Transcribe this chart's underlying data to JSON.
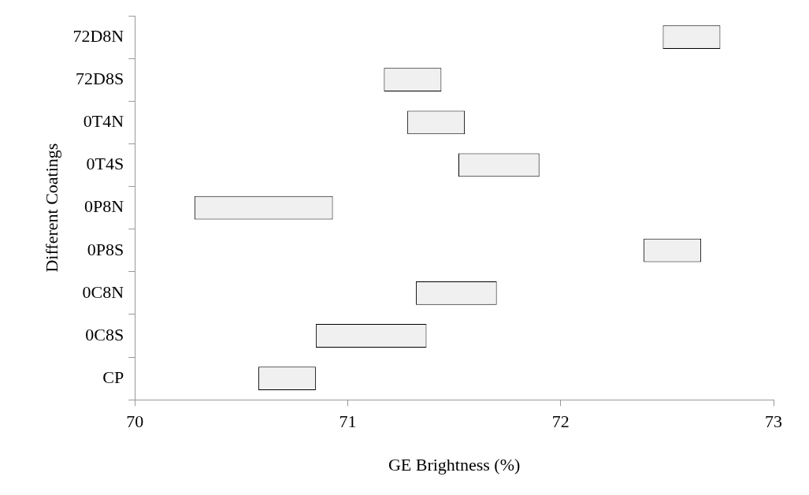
{
  "chart_data": {
    "type": "bar",
    "orientation": "horizontal",
    "xlabel": "GE Brightness (%)",
    "ylabel": "Different Coatings",
    "categories": [
      "72D8N",
      "72D8S",
      "0T4N",
      "0T4S",
      "0P8N",
      "0P8S",
      "0C8N",
      "0C8S",
      "CP"
    ],
    "base": [
      72.48,
      71.17,
      71.28,
      71.52,
      70.28,
      72.39,
      71.32,
      70.85,
      70.58
    ],
    "values": [
      0.27,
      0.27,
      0.27,
      0.38,
      0.65,
      0.27,
      0.38,
      0.52,
      0.27
    ],
    "color": "#f0f0f0",
    "xlim": [
      70,
      73
    ],
    "xticks": [
      70,
      71,
      72,
      73
    ],
    "grid": false,
    "legend": false
  }
}
